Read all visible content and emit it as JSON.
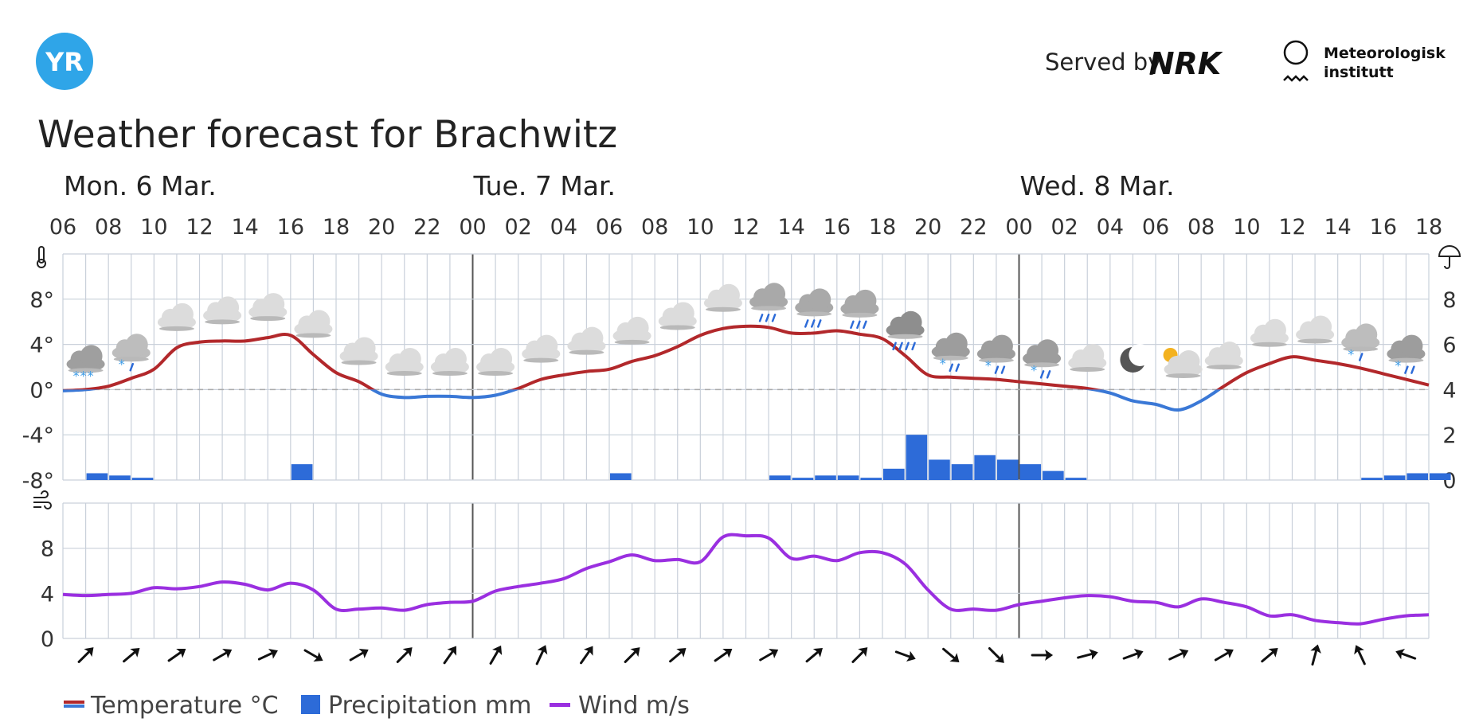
{
  "header": {
    "logo_text": "YR",
    "served_by": "Served by",
    "nrk_logo": "NRK",
    "met_line1": "Meteorologisk",
    "met_line2": "institutt"
  },
  "title": "Weather forecast for Brachwitz",
  "colors": {
    "temp_warm": "#b2282b",
    "temp_cold": "#3a78d6",
    "precip": "#2d6bd8",
    "wind": "#9a2fe0",
    "grid": "#c9d0da",
    "logo": "#2fa5e8"
  },
  "legend": {
    "temperature": "Temperature °C",
    "precipitation": "Precipitation mm",
    "wind": "Wind m/s"
  },
  "chart_data": {
    "type": "line",
    "days": [
      {
        "label": "Mon. 6 Mar.",
        "start_index": 0
      },
      {
        "label": "Tue. 7 Mar.",
        "start_index": 18
      },
      {
        "label": "Wed. 8 Mar.",
        "start_index": 42
      }
    ],
    "hour_ticks": [
      "06",
      "08",
      "10",
      "12",
      "14",
      "16",
      "18",
      "20",
      "22",
      "00",
      "02",
      "04",
      "06",
      "08",
      "10",
      "12",
      "14",
      "16",
      "18",
      "20",
      "22",
      "00",
      "02",
      "04",
      "06",
      "08",
      "10",
      "12",
      "14",
      "16",
      "18"
    ],
    "temp_axis": {
      "ylim": [
        -8,
        12
      ],
      "ticks": [
        8,
        4,
        0,
        -4,
        -8
      ],
      "tick_labels": [
        "8°",
        "4°",
        "0°",
        "-4°",
        "-8°"
      ]
    },
    "precip_axis": {
      "ylim": [
        0,
        10
      ],
      "ticks": [
        8,
        6,
        4,
        2,
        0
      ]
    },
    "wind_axis": {
      "ylim": [
        0,
        12
      ],
      "ticks": [
        8,
        4,
        0
      ]
    },
    "series": [
      {
        "name": "Temperature °C",
        "unit": "°C",
        "values": [
          -0.1,
          0,
          0.3,
          1,
          1.8,
          3.7,
          4.2,
          4.3,
          4.3,
          4.6,
          4.8,
          3.1,
          1.5,
          0.7,
          -0.4,
          -0.7,
          -0.6,
          -0.6,
          -0.7,
          -0.5,
          0.1,
          0.9,
          1.3,
          1.6,
          1.8,
          2.5,
          3.0,
          3.8,
          4.8,
          5.4,
          5.6,
          5.5,
          5.0,
          5.0,
          5.2,
          4.9,
          4.5,
          3.0,
          1.3,
          1.1,
          1.0,
          0.9,
          0.7,
          0.5,
          0.3,
          0.1,
          -0.3,
          -1.0,
          -1.3,
          -1.8,
          -1.0,
          0.3,
          1.5,
          2.3,
          2.9,
          2.6,
          2.3,
          1.9,
          1.4,
          0.9,
          0.4
        ]
      },
      {
        "name": "Precipitation mm",
        "unit": "mm",
        "values": [
          0,
          0.3,
          0.2,
          0.1,
          0,
          0,
          0,
          0,
          0,
          0,
          0.7,
          0,
          0,
          0,
          0,
          0,
          0,
          0,
          0,
          0,
          0,
          0,
          0,
          0,
          0.3,
          0,
          0,
          0,
          0,
          0,
          0,
          0.2,
          0.1,
          0.2,
          0.2,
          0.1,
          0.5,
          2,
          0.9,
          0.7,
          1.1,
          0.9,
          0.7,
          0.4,
          0.1,
          0,
          0,
          0,
          0,
          0,
          0,
          0,
          0,
          0,
          0,
          0,
          0,
          0.1,
          0.2,
          0.3,
          0.3
        ]
      },
      {
        "name": "Wind m/s",
        "unit": "m/s",
        "values": [
          3.9,
          3.8,
          3.9,
          4.0,
          4.5,
          4.4,
          4.6,
          5.0,
          4.8,
          4.3,
          4.9,
          4.3,
          2.6,
          2.6,
          2.7,
          2.5,
          3.0,
          3.2,
          3.3,
          4.2,
          4.6,
          4.9,
          5.3,
          6.2,
          6.8,
          7.4,
          6.9,
          7.0,
          6.8,
          9.0,
          9.1,
          8.9,
          7.1,
          7.3,
          6.9,
          7.6,
          7.6,
          6.6,
          4.3,
          2.6,
          2.6,
          2.5,
          3.0,
          3.3,
          3.6,
          3.8,
          3.7,
          3.3,
          3.2,
          2.8,
          3.5,
          3.2,
          2.8,
          2.0,
          2.1,
          1.6,
          1.4,
          1.3,
          1.7,
          2.0,
          2.1
        ]
      }
    ],
    "weather_symbols": [
      {
        "index": 1,
        "icon": "partly-cloudy-snow"
      },
      {
        "index": 3,
        "icon": "cloudy-light-snow"
      },
      {
        "index": 5,
        "icon": "cloud"
      },
      {
        "index": 7,
        "icon": "cloud"
      },
      {
        "index": 9,
        "icon": "cloud"
      },
      {
        "index": 11,
        "icon": "cloud"
      },
      {
        "index": 13,
        "icon": "cloud"
      },
      {
        "index": 15,
        "icon": "cloud"
      },
      {
        "index": 17,
        "icon": "cloud"
      },
      {
        "index": 19,
        "icon": "cloud"
      },
      {
        "index": 21,
        "icon": "cloud"
      },
      {
        "index": 23,
        "icon": "cloud"
      },
      {
        "index": 25,
        "icon": "cloud"
      },
      {
        "index": 27,
        "icon": "cloud"
      },
      {
        "index": 29,
        "icon": "cloud"
      },
      {
        "index": 31,
        "icon": "cloudy-light-rain"
      },
      {
        "index": 33,
        "icon": "cloudy-light-rain"
      },
      {
        "index": 35,
        "icon": "cloudy-light-rain"
      },
      {
        "index": 37,
        "icon": "heavy-rain"
      },
      {
        "index": 39,
        "icon": "sleet"
      },
      {
        "index": 41,
        "icon": "sleet"
      },
      {
        "index": 43,
        "icon": "sleet"
      },
      {
        "index": 45,
        "icon": "cloud"
      },
      {
        "index": 47,
        "icon": "clear-night-moon"
      },
      {
        "index": 49,
        "icon": "partly-cloudy-sun"
      },
      {
        "index": 51,
        "icon": "cloud"
      },
      {
        "index": 53,
        "icon": "cloud"
      },
      {
        "index": 55,
        "icon": "cloud"
      },
      {
        "index": 57,
        "icon": "cloudy-light-snow"
      },
      {
        "index": 59,
        "icon": "sleet"
      }
    ],
    "wind_direction_degrees": [
      45,
      50,
      55,
      60,
      65,
      120,
      60,
      45,
      35,
      30,
      25,
      35,
      45,
      50,
      55,
      60,
      50,
      45,
      110,
      130,
      135,
      90,
      75,
      70,
      65,
      60,
      50,
      15,
      335,
      290
    ],
    "wind_direction_indices": [
      1,
      3,
      5,
      7,
      9,
      11,
      13,
      15,
      17,
      19,
      21,
      23,
      25,
      27,
      29,
      31,
      33,
      35,
      37,
      39,
      41,
      43,
      45,
      47,
      49,
      51,
      53,
      55,
      57,
      59
    ]
  }
}
